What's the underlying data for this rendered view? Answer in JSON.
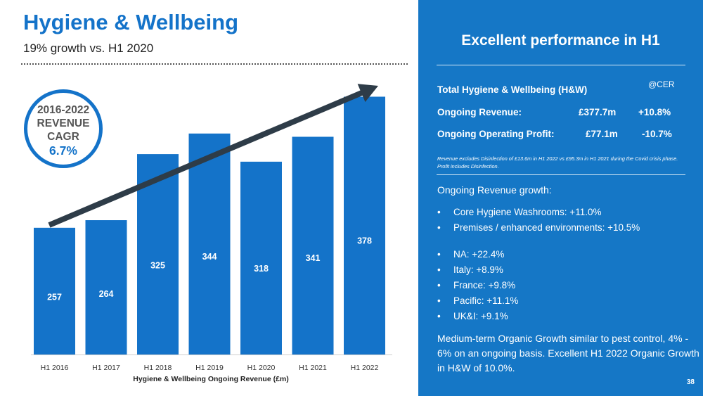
{
  "header": {
    "title": "Hygiene & Wellbeing",
    "subtitle": "19% growth vs. H1 2020"
  },
  "cagr_badge": {
    "line1": "2016-2022",
    "line2": "REVENUE",
    "line3": "CAGR",
    "value": "6.7%"
  },
  "chart_data": {
    "type": "bar",
    "categories": [
      "H1 2016",
      "H1 2017",
      "H1 2018",
      "H1 2019",
      "H1 2020",
      "H1 2021",
      "H1 2022"
    ],
    "values": [
      257,
      264,
      325,
      344,
      318,
      341,
      378
    ],
    "xlabel": "Hygiene & Wellbeing Ongoing Revenue (£m)",
    "ylabel": "",
    "ylim": [
      0,
      400
    ],
    "trend_arrow": true,
    "bar_color": "#1473c9",
    "arrow_color": "#2e3c48"
  },
  "panel": {
    "title": "Excellent performance in H1",
    "total_label": "Total Hygiene & Wellbeing (H&W)",
    "cer_label": "@CER",
    "metrics": [
      {
        "label": "Ongoing Revenue:",
        "value": "£377.7m",
        "change": "+10.8%"
      },
      {
        "label": "Ongoing Operating Profit:",
        "value": "£77.1m",
        "change": "-10.7%"
      }
    ],
    "footnote": "Revenue excludes Disinfection of £13.6m in H1 2022 vs £95.3m in H1 2021 during the Covid crisis phase. Profit includes Disinfection.",
    "growth_heading": "Ongoing Revenue growth:",
    "growth_bullets": [
      "Core Hygiene Washrooms: +11.0%",
      "Premises / enhanced environments: +10.5%"
    ],
    "region_bullets": [
      "NA: +22.4%",
      "Italy: +8.9%",
      "France: +9.8%",
      "Pacific: +11.1%",
      "UK&I: +9.1%"
    ],
    "medium_term": "Medium-term Organic Growth similar to pest control, 4% - 6% on an ongoing basis. Excellent H1 2022 Organic Growth in H&W of 10.0%.",
    "page_number": "38",
    "background_color": "#1577c6"
  }
}
